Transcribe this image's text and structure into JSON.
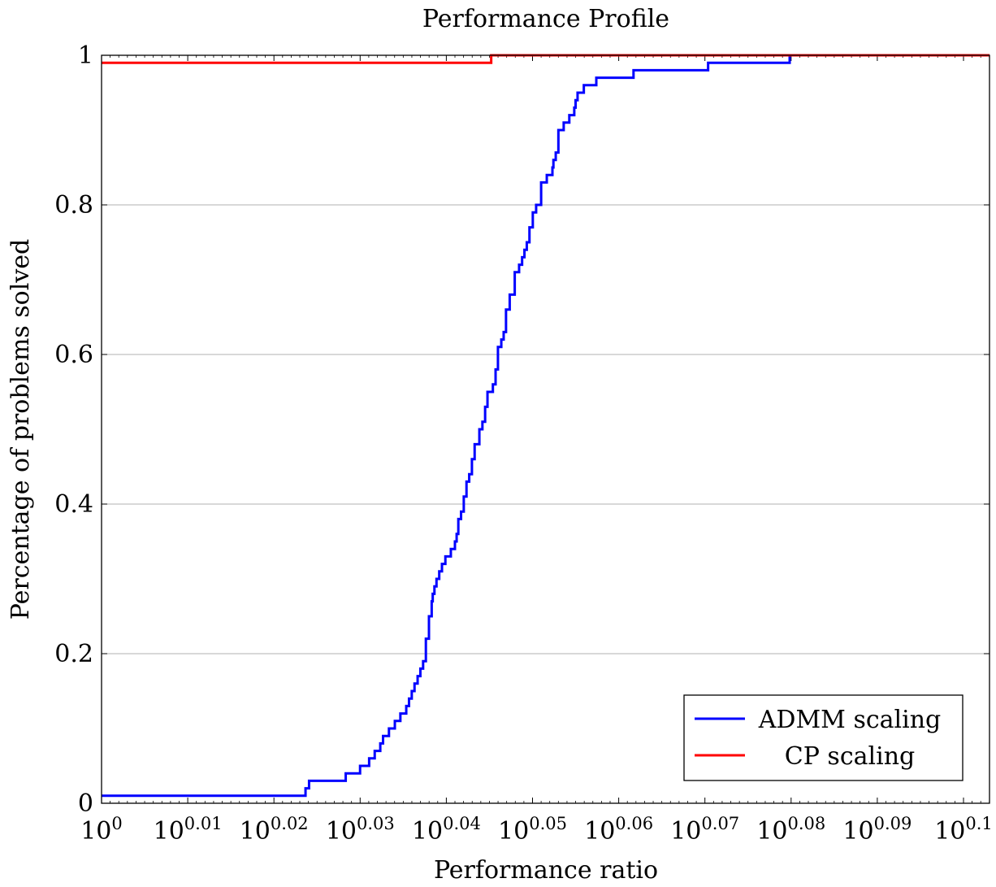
{
  "chart_data": {
    "type": "line",
    "title": "Performance Profile",
    "xlabel": "Performance ratio",
    "ylabel": "Percentage of problems solved",
    "x_scale": "log10",
    "xlim": [
      1,
      1.2677
    ],
    "ylim": [
      0,
      1
    ],
    "x_ticks": [
      {
        "exp": 0,
        "base": "10",
        "sup": "0"
      },
      {
        "exp": 0.01,
        "base": "10",
        "sup": "0.01"
      },
      {
        "exp": 0.02,
        "base": "10",
        "sup": "0.02"
      },
      {
        "exp": 0.03,
        "base": "10",
        "sup": "0.03"
      },
      {
        "exp": 0.04,
        "base": "10",
        "sup": "0.04"
      },
      {
        "exp": 0.05,
        "base": "10",
        "sup": "0.05"
      },
      {
        "exp": 0.06,
        "base": "10",
        "sup": "0.06"
      },
      {
        "exp": 0.07,
        "base": "10",
        "sup": "0.07"
      },
      {
        "exp": 0.08,
        "base": "10",
        "sup": "0.08"
      },
      {
        "exp": 0.09,
        "base": "10",
        "sup": "0.09"
      },
      {
        "exp": 0.1,
        "base": "10",
        "sup": "0.1"
      }
    ],
    "y_ticks": [
      {
        "value": 0,
        "label": "0"
      },
      {
        "value": 0.2,
        "label": "0.2"
      },
      {
        "value": 0.4,
        "label": "0.4"
      },
      {
        "value": 0.6,
        "label": "0.6"
      },
      {
        "value": 0.8,
        "label": "0.8"
      },
      {
        "value": 1,
        "label": "1"
      }
    ],
    "grid": "horizontal",
    "legend_position": "bottom-right",
    "series": [
      {
        "name": "ADMM scaling",
        "color": "#0000ff",
        "step": true,
        "x": [
          1.0,
          1.056,
          1.057,
          1.0674,
          1.0715,
          1.0741,
          1.0757,
          1.0773,
          1.0781,
          1.0798,
          1.0815,
          1.0831,
          1.0848,
          1.0856,
          1.0864,
          1.0872,
          1.0881,
          1.0889,
          1.0897,
          1.0905,
          1.0914,
          1.0922,
          1.0925,
          1.093,
          1.0936,
          1.0944,
          1.0952,
          1.0962,
          1.0978,
          1.099,
          1.0995,
          1.1,
          1.1008,
          1.1016,
          1.1024,
          1.1032,
          1.104,
          1.1048,
          1.1062,
          1.1071,
          1.1079,
          1.1086,
          1.1094,
          1.1102,
          1.111,
          1.1117,
          1.1127,
          1.1134,
          1.1141,
          1.1152,
          1.1167,
          1.118,
          1.1189,
          1.1196,
          1.1203,
          1.1211,
          1.1221,
          1.1231,
          1.1246,
          1.1263,
          1.128,
          1.1283,
          1.129,
          1.1298,
          1.1314,
          1.1331,
          1.1346,
          1.135,
          1.1356,
          1.1363,
          1.1375,
          1.1413,
          1.1527,
          1.155,
          1.1759,
          1.2018,
          1.2677
        ],
        "y": [
          0.01,
          0.02,
          0.03,
          0.04,
          0.05,
          0.06,
          0.07,
          0.08,
          0.09,
          0.1,
          0.11,
          0.12,
          0.13,
          0.14,
          0.15,
          0.16,
          0.17,
          0.18,
          0.19,
          0.22,
          0.25,
          0.27,
          0.28,
          0.29,
          0.3,
          0.31,
          0.32,
          0.33,
          0.34,
          0.35,
          0.36,
          0.38,
          0.39,
          0.41,
          0.43,
          0.44,
          0.46,
          0.48,
          0.5,
          0.51,
          0.53,
          0.55,
          0.55,
          0.56,
          0.58,
          0.61,
          0.62,
          0.63,
          0.66,
          0.68,
          0.71,
          0.72,
          0.73,
          0.74,
          0.75,
          0.77,
          0.79,
          0.8,
          0.83,
          0.84,
          0.85,
          0.86,
          0.87,
          0.9,
          0.91,
          0.92,
          0.93,
          0.94,
          0.95,
          0.95,
          0.96,
          0.97,
          0.98,
          0.98,
          0.99,
          1.0,
          1.0
        ]
      },
      {
        "name": "CP scaling",
        "color": "#ff0000",
        "step": true,
        "x": [
          1.0,
          1.1097,
          1.2677
        ],
        "y": [
          0.99,
          1.0,
          1.0
        ]
      }
    ]
  }
}
